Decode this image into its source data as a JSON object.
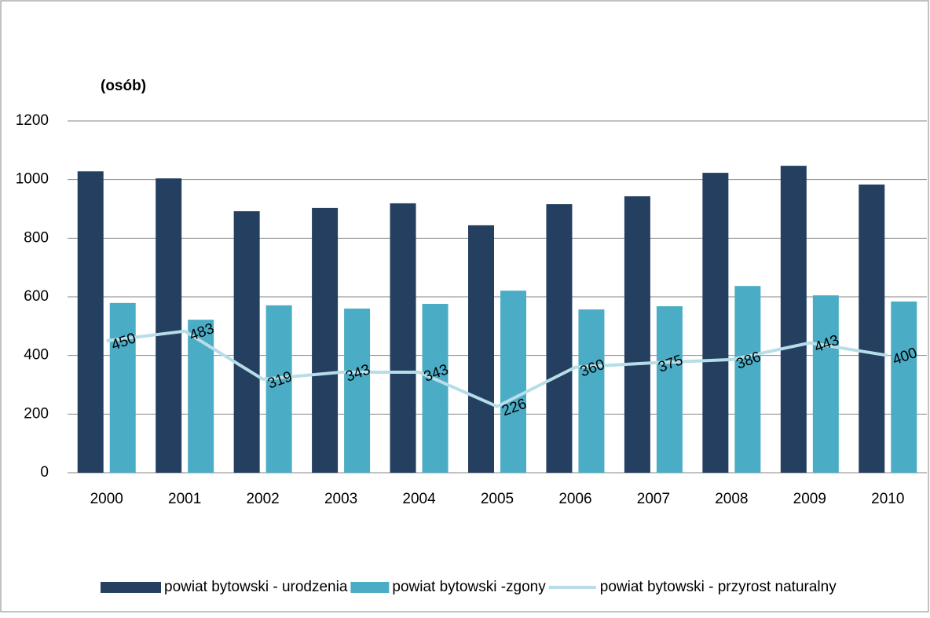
{
  "chart_data": {
    "type": "bar",
    "title": "(osób)",
    "categories": [
      "2000",
      "2001",
      "2002",
      "2003",
      "2004",
      "2005",
      "2006",
      "2007",
      "2008",
      "2009",
      "2010"
    ],
    "series": [
      {
        "name": "powiat bytowski - urodzenia",
        "color": "#243f60",
        "values": [
          1028,
          1004,
          892,
          903,
          919,
          844,
          916,
          943,
          1023,
          1047,
          983
        ]
      },
      {
        "name": "powiat bytowski -zgony",
        "color": "#4bacc6",
        "values": [
          579,
          522,
          571,
          560,
          576,
          621,
          557,
          568,
          637,
          605,
          584
        ]
      },
      {
        "name": "powiat bytowski - przyrost naturalny",
        "color": "#b7dee8",
        "type": "line",
        "values": [
          450,
          483,
          319,
          343,
          343,
          226,
          360,
          375,
          386,
          443,
          400
        ]
      }
    ],
    "ylim": [
      0,
      1200
    ],
    "yticks": [
      0,
      200,
      400,
      600,
      800,
      1000,
      1200
    ],
    "grid": true,
    "legend": "bottom"
  }
}
